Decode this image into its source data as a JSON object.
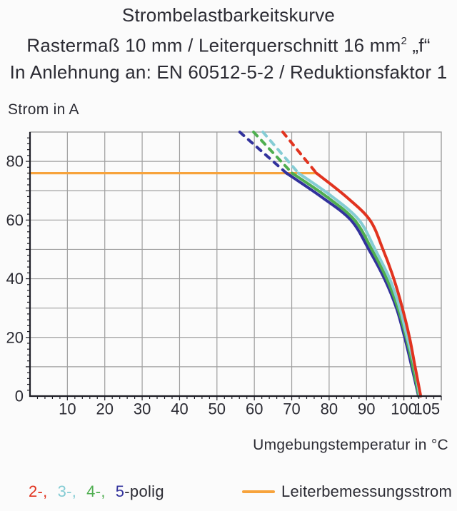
{
  "title": {
    "line1": "Strombelastbarkeitskurve",
    "line2_pre": "Rastermaß 10 mm / Leiterquerschnitt 16 mm",
    "line2_sup": "2",
    "line2_post": " „f“",
    "line3": "In Anlehnung an: EN 60512-5-2 / Reduktionsfaktor 1"
  },
  "colors": {
    "red": "#e1331f",
    "cyan": "#85ccd4",
    "green": "#4fae50",
    "blue": "#32329c",
    "orange": "#f7a33c",
    "grid": "#9f9f9f",
    "axis": "#1e1e26",
    "text": "#2b2b33"
  },
  "chart_data": {
    "type": "line",
    "title": "Strombelastbarkeitskurve",
    "xlabel": "Umgebungstemperatur in °C",
    "ylabel": "Strom in A",
    "xlim": [
      0,
      110
    ],
    "ylim": [
      0,
      90
    ],
    "grid": true,
    "grid_step_x": 10,
    "grid_step_y": 10,
    "minor_tick_step": 2,
    "x_tick_labels": [
      10,
      20,
      30,
      40,
      50,
      60,
      70,
      80,
      90,
      100,
      105
    ],
    "y_tick_labels": [
      0,
      20,
      40,
      60,
      80
    ],
    "legend_position": "bottom",
    "rated_current_A": 76,
    "series": [
      {
        "name": "2-polig",
        "color": "#e1331f",
        "dashed_x": [
          67.6,
          76.6
        ],
        "dashed_y": [
          90,
          76
        ],
        "x": [
          76.6,
          84.5,
          90.9,
          94.4,
          97.3,
          99.6,
          101.5,
          103.0,
          104.5
        ],
        "y": [
          76,
          68,
          60,
          50,
          40,
          30,
          20,
          10,
          0
        ]
      },
      {
        "name": "3-polig",
        "color": "#85ccd4",
        "dashed_x": [
          62.3,
          71.8
        ],
        "dashed_y": [
          90,
          76
        ],
        "x": [
          71.8,
          80.8,
          88.0,
          92.3,
          96.2,
          98.9,
          100.9,
          102.9,
          104.2
        ],
        "y": [
          76,
          68,
          60,
          50,
          40,
          30,
          20,
          10,
          0
        ]
      },
      {
        "name": "4-polig",
        "color": "#4fae50",
        "dashed_x": [
          59.8,
          70.1
        ],
        "dashed_y": [
          90,
          76
        ],
        "x": [
          70.1,
          79.3,
          86.8,
          91.4,
          95.4,
          98.4,
          100.6,
          102.4,
          104.0
        ],
        "y": [
          76,
          68,
          60,
          50,
          40,
          30,
          20,
          10,
          0
        ]
      },
      {
        "name": "5-polig",
        "color": "#32329c",
        "dashed_x": [
          56.1,
          68.6
        ],
        "dashed_y": [
          90,
          76
        ],
        "x": [
          68.6,
          77.8,
          85.8,
          90.6,
          94.8,
          98.0,
          100.2,
          102.1,
          103.9
        ],
        "y": [
          76,
          68,
          60,
          50,
          40,
          30,
          20,
          10,
          0
        ]
      },
      {
        "name": "Leiterbemessungsstrom",
        "color": "#f7a33c",
        "straight": true,
        "x": [
          0,
          76.6
        ],
        "y": [
          76,
          76
        ]
      }
    ]
  },
  "legend": {
    "pole_items": [
      {
        "label": "2-,",
        "color": "#e1331f"
      },
      {
        "label": "3-,",
        "color": "#85ccd4"
      },
      {
        "label": "4-,",
        "color": "#4fae50"
      },
      {
        "label": "5",
        "color": "#32329c"
      }
    ],
    "pole_suffix": "-polig",
    "line_label": "Leiterbemessungsstrom",
    "line_color": "#f7a33c"
  }
}
